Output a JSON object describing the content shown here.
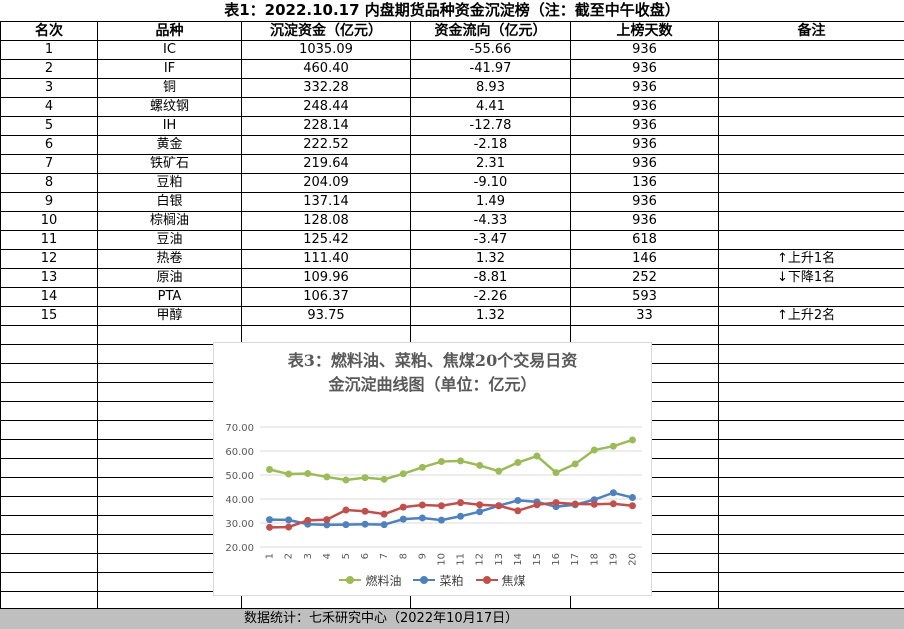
{
  "title": "表1：2022.10.17 内盘期货品种资金沉淀榜（注：截至中午收盘）",
  "columns": [
    "名次",
    "品种",
    "沉淀资金（亿元）",
    "资金流向（亿元）",
    "上榜天数",
    "备注"
  ],
  "rows": [
    [
      "1",
      "IC",
      "1035.09",
      "-55.66",
      "936",
      ""
    ],
    [
      "2",
      "IF",
      "460.40",
      "-41.97",
      "936",
      ""
    ],
    [
      "3",
      "铜",
      "332.28",
      "8.93",
      "936",
      ""
    ],
    [
      "4",
      "螺纹钢",
      "248.44",
      "4.41",
      "936",
      ""
    ],
    [
      "5",
      "IH",
      "228.14",
      "-12.78",
      "936",
      ""
    ],
    [
      "6",
      "黄金",
      "222.52",
      "-2.18",
      "936",
      ""
    ],
    [
      "7",
      "铁矿石",
      "219.64",
      "2.31",
      "936",
      ""
    ],
    [
      "8",
      "豆粕",
      "204.09",
      "-9.10",
      "136",
      ""
    ],
    [
      "9",
      "白银",
      "137.14",
      "1.49",
      "936",
      ""
    ],
    [
      "10",
      "棕榈油",
      "128.08",
      "-4.33",
      "936",
      ""
    ],
    [
      "11",
      "豆油",
      "125.42",
      "-3.47",
      "618",
      ""
    ],
    [
      "12",
      "热卷",
      "111.40",
      "1.32",
      "146",
      "↑上升1名"
    ],
    [
      "13",
      "原油",
      "109.96",
      "-8.81",
      "252",
      "↓下降1名"
    ],
    [
      "14",
      "PTA",
      "106.37",
      "-2.26",
      "593",
      ""
    ],
    [
      "15",
      "甲醇",
      "93.75",
      "1.32",
      "33",
      "↑上升2名"
    ]
  ],
  "footer": "数据统计：七禾研究中心（2022年10月17日）",
  "chart_data": {
    "type": "line",
    "title": "表3：燃料油、菜粕、焦煤20个交易日资金沉淀曲线图（单位：亿元）",
    "title_lines": [
      "表3：燃料油、菜粕、焦煤20个交易日资",
      "金沉淀曲线图（单位：亿元）"
    ],
    "x": [
      1,
      2,
      3,
      4,
      5,
      6,
      7,
      8,
      9,
      10,
      11,
      12,
      13,
      14,
      15,
      16,
      17,
      18,
      19,
      20
    ],
    "ylim": [
      20,
      70
    ],
    "yticks": [
      "20.00",
      "30.00",
      "40.00",
      "50.00",
      "60.00",
      "70.00"
    ],
    "grid": true,
    "legend_position": "bottom",
    "series": [
      {
        "name": "燃料油",
        "color": "#9bbb59",
        "values": [
          52.3,
          50.4,
          50.6,
          49.2,
          47.9,
          48.9,
          48.2,
          50.5,
          53.2,
          55.6,
          55.9,
          54.0,
          51.6,
          55.2,
          57.9,
          51.0,
          54.6,
          60.4,
          62.0,
          64.6
        ]
      },
      {
        "name": "菜粕",
        "color": "#4f81bd",
        "values": [
          31.4,
          31.3,
          29.5,
          29.2,
          29.3,
          29.5,
          29.3,
          31.6,
          32.1,
          31.2,
          32.8,
          34.7,
          37.2,
          39.4,
          38.8,
          36.8,
          37.6,
          39.7,
          42.6,
          40.6
        ]
      },
      {
        "name": "焦煤",
        "color": "#c0504d",
        "values": [
          28.2,
          28.3,
          31.1,
          31.4,
          35.4,
          34.9,
          33.7,
          36.6,
          37.5,
          37.2,
          38.5,
          37.6,
          37.2,
          35.1,
          37.6,
          38.5,
          37.9,
          37.8,
          38.0,
          37.2
        ]
      }
    ]
  }
}
